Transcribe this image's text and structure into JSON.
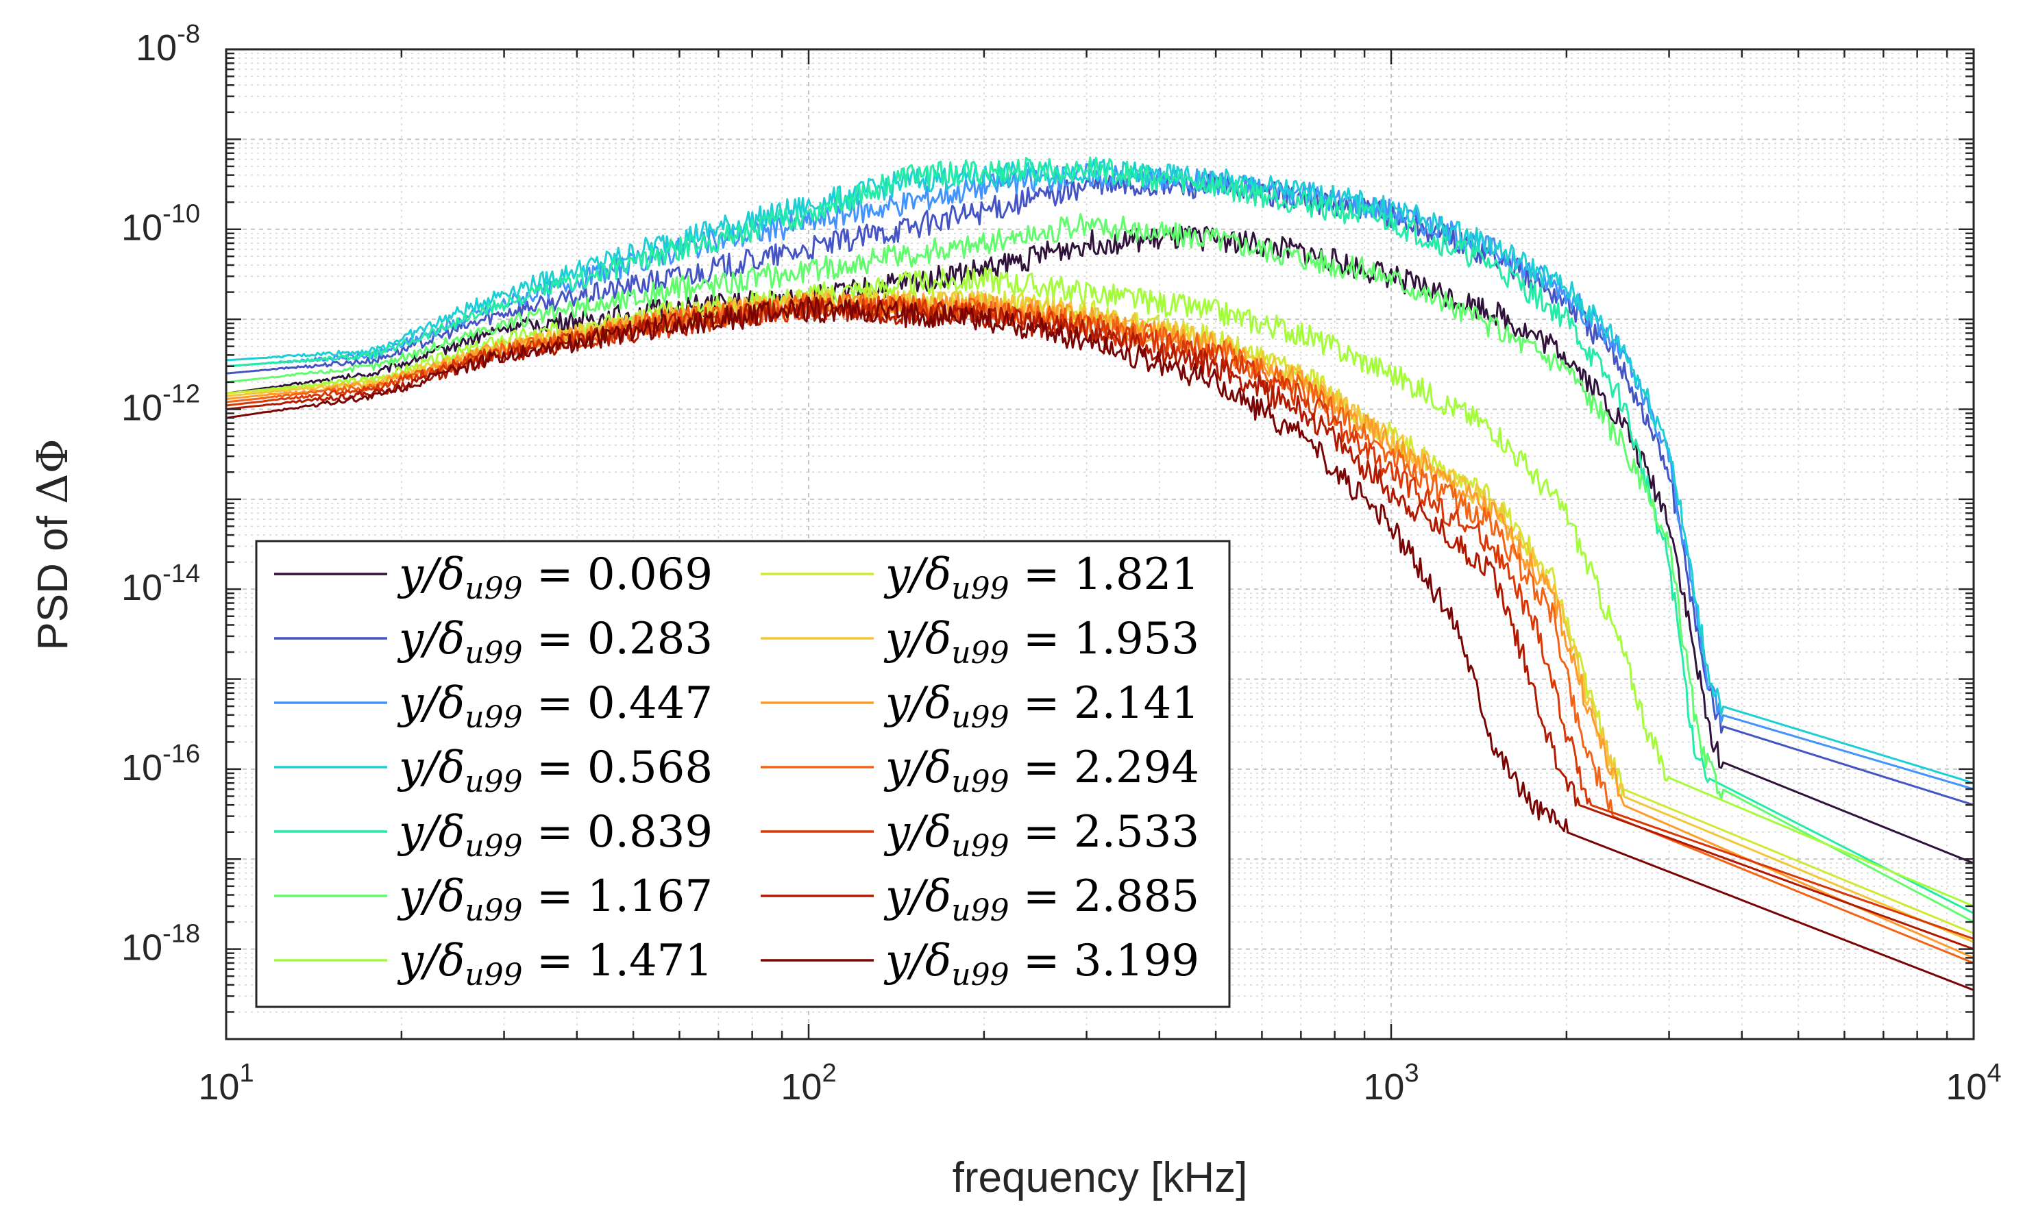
{
  "chart_data": {
    "type": "line",
    "xscale": "log",
    "yscale": "log",
    "xlim": [
      10,
      10000
    ],
    "ylim": [
      1e-19,
      1e-08
    ],
    "xlabel": "frequency [kHz]",
    "ylabel_prefix": "PSD of ",
    "ylabel_symbol": "ΔΦ",
    "grid": "on (major and minor)",
    "legend_location": "lower-left, two columns",
    "x_ticks": [
      {
        "value": 10,
        "base": "10",
        "exp": "1"
      },
      {
        "value": 100,
        "base": "10",
        "exp": "2"
      },
      {
        "value": 1000,
        "base": "10",
        "exp": "3"
      },
      {
        "value": 10000,
        "base": "10",
        "exp": "4"
      }
    ],
    "y_ticks": [
      {
        "value": 1e-08,
        "base": "10",
        "exp": "-8"
      },
      {
        "value": 1e-10,
        "base": "10",
        "exp": "-10"
      },
      {
        "value": 1e-12,
        "base": "10",
        "exp": "-12"
      },
      {
        "value": 1e-14,
        "base": "10",
        "exp": "-14"
      },
      {
        "value": 1e-16,
        "base": "10",
        "exp": "-16"
      },
      {
        "value": 1e-18,
        "base": "10",
        "exp": "-18"
      }
    ],
    "legend_label_prefix": "y/δ",
    "legend_label_sub": "u99",
    "legend_label_eq": " = ",
    "series": [
      {
        "name": "0.069",
        "color": "#30123b",
        "points": [
          [
            10,
            1.5e-12
          ],
          [
            18,
            2.5e-12
          ],
          [
            30,
            8e-12
          ],
          [
            60,
            1.3e-11
          ],
          [
            100,
            1.7e-11
          ],
          [
            200,
            3.5e-11
          ],
          [
            300,
            7e-11
          ],
          [
            500,
            8e-11
          ],
          [
            700,
            5.5e-11
          ],
          [
            1000,
            3e-11
          ],
          [
            1500,
            1.2e-11
          ],
          [
            2000,
            4e-12
          ],
          [
            2500,
            7e-13
          ],
          [
            3000,
            6e-14
          ],
          [
            3500,
            3e-16
          ],
          [
            3700,
            1.2e-16
          ],
          [
            10000,
            9e-18
          ]
        ]
      },
      {
        "name": "0.283",
        "color": "#4454c4",
        "points": [
          [
            10,
            2.5e-12
          ],
          [
            18,
            3.5e-12
          ],
          [
            30,
            1.2e-11
          ],
          [
            60,
            3e-11
          ],
          [
            100,
            6e-11
          ],
          [
            200,
            1.6e-10
          ],
          [
            300,
            3e-10
          ],
          [
            500,
            3e-10
          ],
          [
            700,
            2.2e-10
          ],
          [
            1000,
            1.4e-10
          ],
          [
            1500,
            5e-11
          ],
          [
            2000,
            1.6e-11
          ],
          [
            2500,
            3e-12
          ],
          [
            3000,
            2e-13
          ],
          [
            3500,
            8e-16
          ],
          [
            3700,
            3e-16
          ],
          [
            10000,
            4e-17
          ]
        ]
      },
      {
        "name": "0.447",
        "color": "#4393fd",
        "points": [
          [
            10,
            3e-12
          ],
          [
            18,
            4e-12
          ],
          [
            30,
            1.5e-11
          ],
          [
            60,
            6e-11
          ],
          [
            100,
            1.2e-10
          ],
          [
            200,
            3e-10
          ],
          [
            300,
            4e-10
          ],
          [
            500,
            3.3e-10
          ],
          [
            700,
            2.5e-10
          ],
          [
            1000,
            1.6e-10
          ],
          [
            1500,
            6e-11
          ],
          [
            2000,
            2e-11
          ],
          [
            2500,
            4e-12
          ],
          [
            3000,
            3e-13
          ],
          [
            3500,
            1e-15
          ],
          [
            3700,
            4e-16
          ],
          [
            10000,
            6e-17
          ]
        ]
      },
      {
        "name": "0.568",
        "color": "#1bcfd4",
        "points": [
          [
            10,
            3.5e-12
          ],
          [
            18,
            4.5e-12
          ],
          [
            30,
            2e-11
          ],
          [
            60,
            8e-11
          ],
          [
            100,
            1.8e-10
          ],
          [
            150,
            3.5e-10
          ],
          [
            300,
            4.5e-10
          ],
          [
            500,
            3.5e-10
          ],
          [
            700,
            2.6e-10
          ],
          [
            1000,
            1.7e-10
          ],
          [
            1500,
            6.5e-11
          ],
          [
            2000,
            2.2e-11
          ],
          [
            2500,
            5e-12
          ],
          [
            3000,
            4e-13
          ],
          [
            3500,
            1.2e-15
          ],
          [
            3700,
            5e-16
          ],
          [
            10000,
            7e-17
          ]
        ]
      },
      {
        "name": "0.839",
        "color": "#24eca6",
        "points": [
          [
            10,
            3e-12
          ],
          [
            18,
            4e-12
          ],
          [
            30,
            1.5e-11
          ],
          [
            60,
            6e-11
          ],
          [
            100,
            1.5e-10
          ],
          [
            150,
            4e-10
          ],
          [
            300,
            4.8e-10
          ],
          [
            500,
            3e-10
          ],
          [
            700,
            2e-10
          ],
          [
            1000,
            1.2e-10
          ],
          [
            1500,
            4e-11
          ],
          [
            2000,
            1e-11
          ],
          [
            2500,
            1.2e-12
          ],
          [
            3000,
            2e-14
          ],
          [
            3300,
            2e-16
          ],
          [
            3500,
            8e-17
          ],
          [
            10000,
            2.5e-18
          ]
        ]
      },
      {
        "name": "1.167",
        "color": "#61fc6c",
        "points": [
          [
            10,
            2e-12
          ],
          [
            18,
            3e-12
          ],
          [
            30,
            9e-12
          ],
          [
            60,
            2.2e-11
          ],
          [
            100,
            3.5e-11
          ],
          [
            200,
            7e-11
          ],
          [
            300,
            1.1e-10
          ],
          [
            500,
            8e-11
          ],
          [
            700,
            5e-11
          ],
          [
            1000,
            3e-11
          ],
          [
            1500,
            8e-12
          ],
          [
            2000,
            3e-12
          ],
          [
            2500,
            4e-13
          ],
          [
            3000,
            3e-14
          ],
          [
            3400,
            1.5e-16
          ],
          [
            3700,
            6e-17
          ],
          [
            10000,
            2e-18
          ]
        ]
      },
      {
        "name": "1.471",
        "color": "#a4fc3b",
        "points": [
          [
            10,
            1.5e-12
          ],
          [
            18,
            2.2e-12
          ],
          [
            30,
            6e-12
          ],
          [
            60,
            1.2e-11
          ],
          [
            100,
            1.8e-11
          ],
          [
            150,
            2.5e-11
          ],
          [
            200,
            2.8e-11
          ],
          [
            300,
            2e-11
          ],
          [
            500,
            1.2e-11
          ],
          [
            700,
            7e-12
          ],
          [
            1000,
            2.5e-12
          ],
          [
            1500,
            6e-13
          ],
          [
            2000,
            7e-14
          ],
          [
            2500,
            2e-15
          ],
          [
            2800,
            2e-16
          ],
          [
            3000,
            8e-17
          ],
          [
            10000,
            3e-18
          ]
        ]
      },
      {
        "name": "1.821",
        "color": "#d1e834",
        "points": [
          [
            10,
            1.5e-12
          ],
          [
            18,
            2e-12
          ],
          [
            30,
            5e-12
          ],
          [
            60,
            1.1e-11
          ],
          [
            100,
            1.6e-11
          ],
          [
            200,
            1.6e-11
          ],
          [
            300,
            1.2e-11
          ],
          [
            500,
            6e-12
          ],
          [
            700,
            2.5e-12
          ],
          [
            1000,
            5e-13
          ],
          [
            1500,
            1e-13
          ],
          [
            1900,
            1.2e-14
          ],
          [
            2200,
            6e-16
          ],
          [
            2500,
            6e-17
          ],
          [
            10000,
            1.5e-18
          ]
        ]
      },
      {
        "name": "1.953",
        "color": "#f3c63a",
        "points": [
          [
            10,
            1.4e-12
          ],
          [
            18,
            2e-12
          ],
          [
            30,
            5e-12
          ],
          [
            60,
            1.1e-11
          ],
          [
            100,
            1.5e-11
          ],
          [
            200,
            1.5e-11
          ],
          [
            300,
            1.1e-11
          ],
          [
            500,
            5.5e-12
          ],
          [
            700,
            2.2e-12
          ],
          [
            1000,
            4.5e-13
          ],
          [
            1500,
            9e-14
          ],
          [
            1900,
            1e-14
          ],
          [
            2200,
            5e-16
          ],
          [
            2500,
            5e-17
          ],
          [
            10000,
            1.2e-18
          ]
        ]
      },
      {
        "name": "2.141",
        "color": "#fe9b2d",
        "points": [
          [
            10,
            1.3e-12
          ],
          [
            18,
            1.9e-12
          ],
          [
            30,
            5e-12
          ],
          [
            60,
            1e-11
          ],
          [
            100,
            1.5e-11
          ],
          [
            200,
            1.4e-11
          ],
          [
            300,
            1e-11
          ],
          [
            500,
            5e-12
          ],
          [
            700,
            2e-12
          ],
          [
            1000,
            4e-13
          ],
          [
            1500,
            7e-14
          ],
          [
            1900,
            8e-15
          ],
          [
            2200,
            4e-16
          ],
          [
            2500,
            4e-17
          ],
          [
            10000,
            8e-19
          ]
        ]
      },
      {
        "name": "2.294",
        "color": "#f36315",
        "points": [
          [
            10,
            1.2e-12
          ],
          [
            18,
            1.8e-12
          ],
          [
            30,
            4.5e-12
          ],
          [
            60,
            1e-11
          ],
          [
            100,
            1.4e-11
          ],
          [
            200,
            1.3e-11
          ],
          [
            300,
            9e-12
          ],
          [
            500,
            4.5e-12
          ],
          [
            700,
            1.8e-12
          ],
          [
            1000,
            3e-13
          ],
          [
            1500,
            5e-14
          ],
          [
            1900,
            5e-15
          ],
          [
            2100,
            3e-16
          ],
          [
            2400,
            3e-17
          ],
          [
            10000,
            7e-19
          ]
        ]
      },
      {
        "name": "2.533",
        "color": "#d93806",
        "points": [
          [
            10,
            1.1e-12
          ],
          [
            18,
            1.7e-12
          ],
          [
            30,
            4.5e-12
          ],
          [
            60,
            9e-12
          ],
          [
            100,
            1.4e-11
          ],
          [
            200,
            1.2e-11
          ],
          [
            300,
            8e-12
          ],
          [
            500,
            4e-12
          ],
          [
            700,
            1.4e-12
          ],
          [
            1000,
            2e-13
          ],
          [
            1500,
            3e-14
          ],
          [
            1800,
            3e-15
          ],
          [
            2000,
            2.5e-16
          ],
          [
            2200,
            4e-17
          ],
          [
            10000,
            1.3e-18
          ]
        ]
      },
      {
        "name": "2.885",
        "color": "#b11901",
        "points": [
          [
            10,
            1e-12
          ],
          [
            18,
            1.5e-12
          ],
          [
            30,
            4e-12
          ],
          [
            60,
            9e-12
          ],
          [
            100,
            1.3e-11
          ],
          [
            200,
            1.1e-11
          ],
          [
            300,
            7e-12
          ],
          [
            500,
            3e-12
          ],
          [
            700,
            1e-12
          ],
          [
            1000,
            1.2e-13
          ],
          [
            1500,
            1.5e-14
          ],
          [
            1700,
            1.5e-15
          ],
          [
            1900,
            1.5e-16
          ],
          [
            2100,
            4e-17
          ],
          [
            10000,
            1e-18
          ]
        ]
      },
      {
        "name": "3.199",
        "color": "#7a0403",
        "points": [
          [
            10,
            8e-13
          ],
          [
            18,
            1.4e-12
          ],
          [
            30,
            4e-12
          ],
          [
            60,
            9e-12
          ],
          [
            100,
            1.3e-11
          ],
          [
            200,
            1e-11
          ],
          [
            300,
            6e-12
          ],
          [
            500,
            2e-12
          ],
          [
            700,
            5e-13
          ],
          [
            1000,
            5e-14
          ],
          [
            1300,
            4e-15
          ],
          [
            1500,
            2e-16
          ],
          [
            1700,
            5e-17
          ],
          [
            2000,
            2e-17
          ],
          [
            10000,
            3.5e-19
          ]
        ]
      }
    ]
  }
}
